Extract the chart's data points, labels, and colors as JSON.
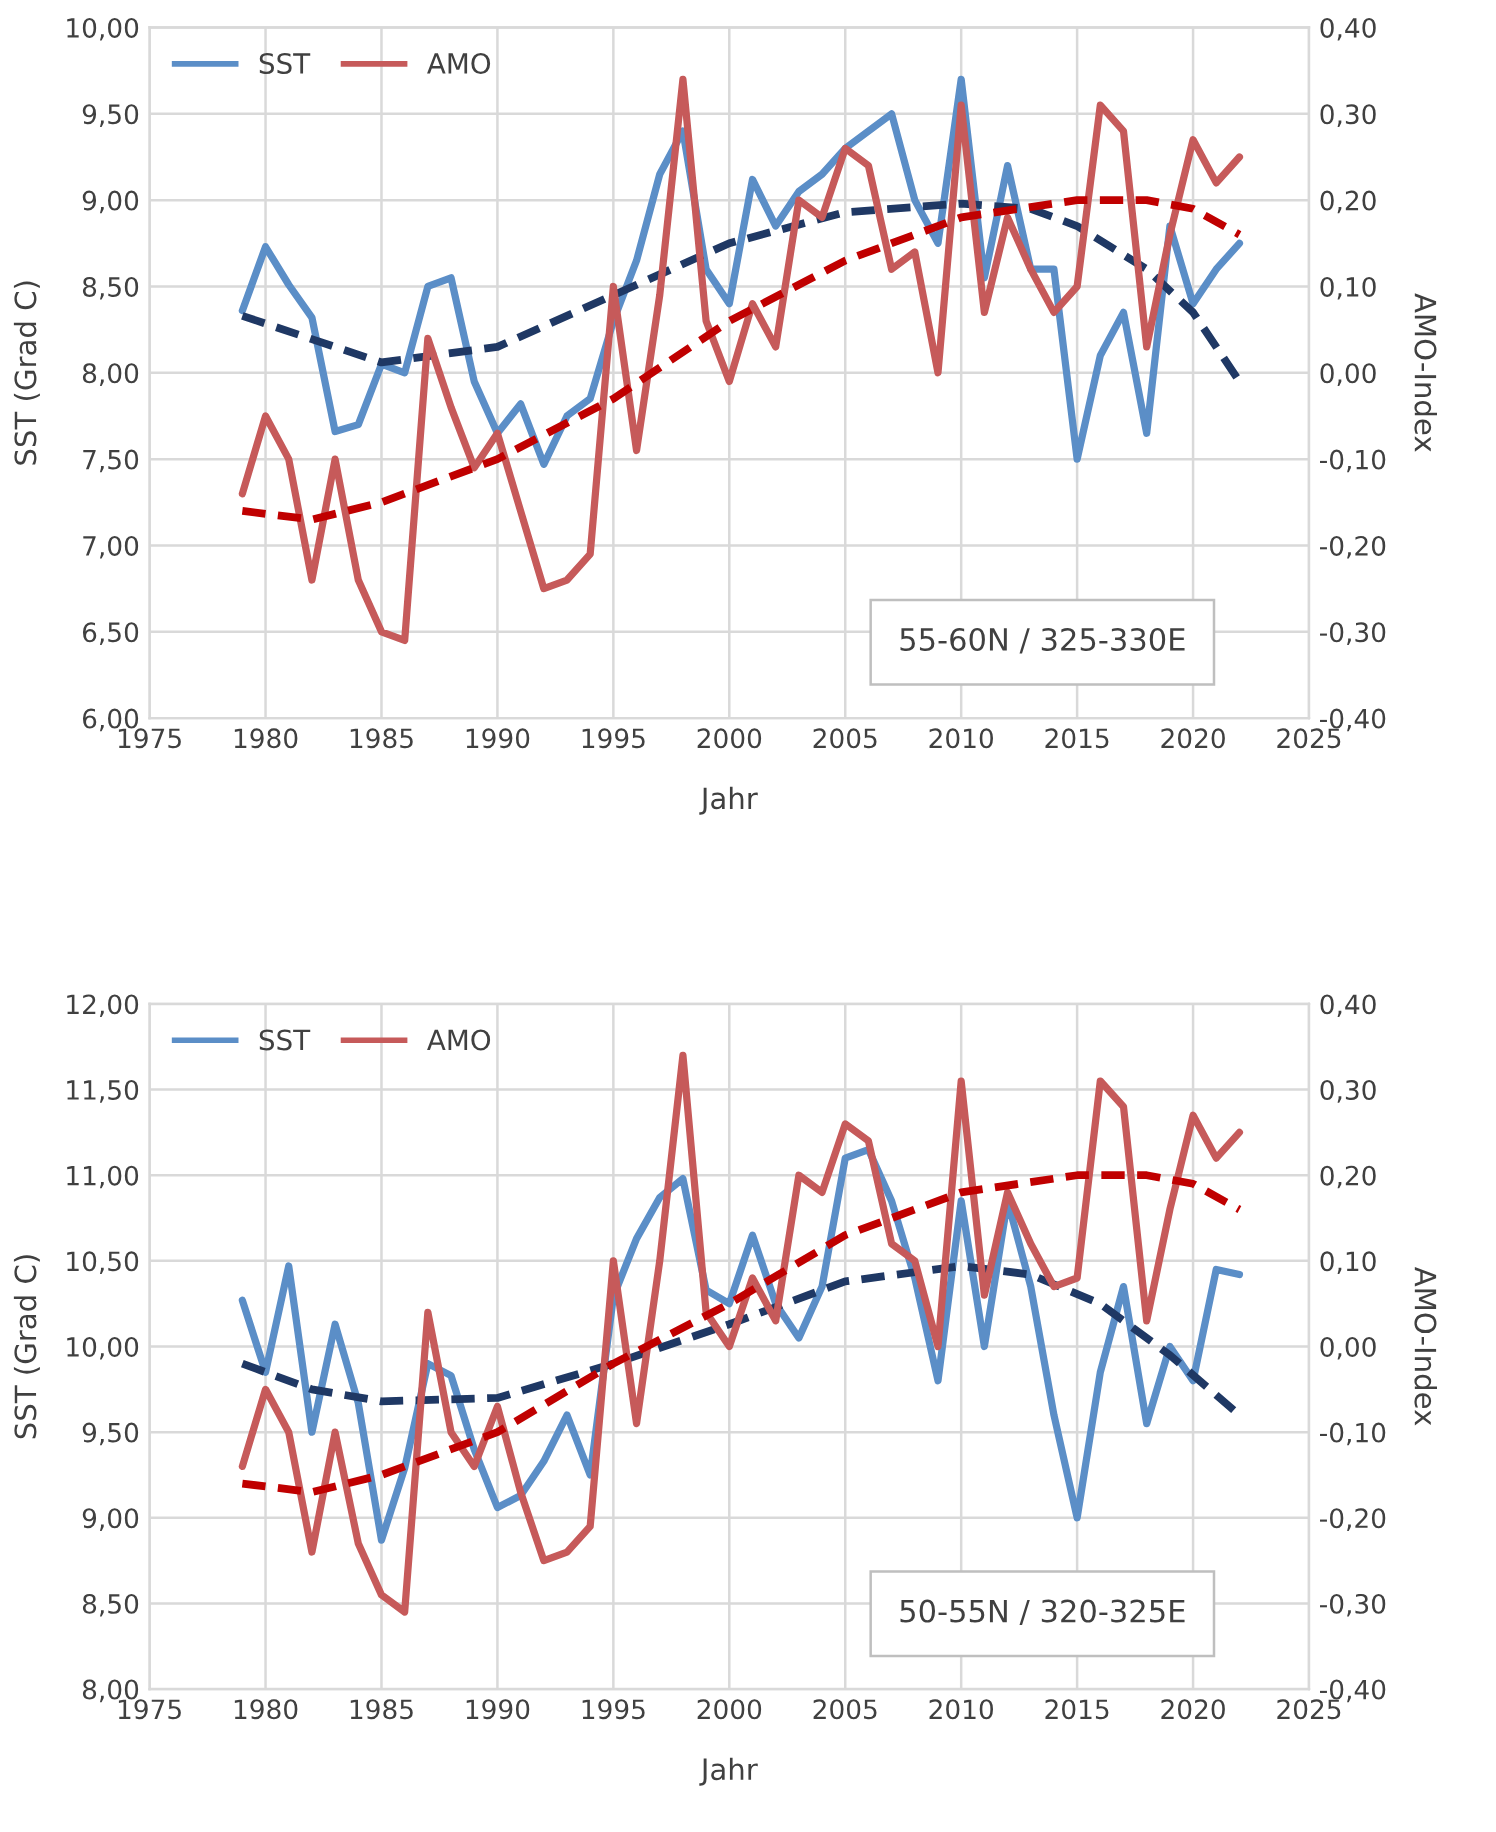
{
  "chart_data": [
    {
      "type": "line",
      "xlabel": "Jahr",
      "ylabel": "SST (Grad C)",
      "y2label": "AMO-Index",
      "annotations": [
        "55-60N / 325-330E"
      ],
      "x": [
        1979,
        1980,
        1981,
        1982,
        1983,
        1984,
        1985,
        1986,
        1987,
        1988,
        1989,
        1990,
        1991,
        1992,
        1993,
        1994,
        1995,
        1996,
        1997,
        1998,
        1999,
        2000,
        2001,
        2002,
        2003,
        2004,
        2005,
        2006,
        2007,
        2008,
        2009,
        2010,
        2011,
        2012,
        2013,
        2014,
        2015,
        2016,
        2017,
        2018,
        2019,
        2020,
        2021,
        2022
      ],
      "series": [
        {
          "name": "SST",
          "color": "#5b8ec7",
          "values": [
            8.36,
            8.73,
            8.51,
            8.32,
            7.66,
            7.7,
            8.05,
            8.0,
            8.5,
            8.55,
            7.95,
            7.65,
            7.82,
            7.47,
            7.75,
            7.85,
            8.3,
            8.65,
            9.15,
            9.4,
            8.6,
            8.4,
            9.12,
            8.85,
            9.05,
            9.15,
            9.3,
            9.4,
            9.5,
            9.0,
            8.75,
            9.7,
            8.55,
            9.2,
            8.6,
            8.6,
            7.5,
            8.1,
            8.35,
            7.65,
            8.85,
            8.4,
            8.6,
            8.75
          ]
        },
        {
          "name": "AMO",
          "color": "#c65a5a",
          "axis": "y2",
          "values": [
            -0.14,
            -0.05,
            -0.1,
            -0.24,
            -0.1,
            -0.24,
            -0.3,
            -0.31,
            0.04,
            -0.04,
            -0.11,
            -0.07,
            -0.16,
            -0.25,
            -0.24,
            -0.21,
            0.1,
            -0.09,
            0.09,
            0.34,
            0.06,
            -0.01,
            0.08,
            0.03,
            0.2,
            0.18,
            0.26,
            0.24,
            0.12,
            0.14,
            0.0,
            0.31,
            0.07,
            0.18,
            0.12,
            0.07,
            0.1,
            0.31,
            0.28,
            0.03,
            0.16,
            0.27,
            0.22,
            0.25
          ]
        },
        {
          "color": "#1f3864",
          "line_style": "dashed",
          "x": [
            1979,
            1985,
            1990,
            1995,
            2000,
            2005,
            2010,
            2013,
            2015,
            2018,
            2020,
            2022
          ],
          "values": [
            8.33,
            8.06,
            8.15,
            8.45,
            8.75,
            8.93,
            8.98,
            8.95,
            8.85,
            8.6,
            8.35,
            7.95
          ]
        },
        {
          "color": "#c00000",
          "line_style": "dashed",
          "axis": "y2",
          "x": [
            1979,
            1982,
            1985,
            1990,
            1995,
            2000,
            2005,
            2010,
            2015,
            2018,
            2020,
            2022
          ],
          "values": [
            -0.16,
            -0.17,
            -0.15,
            -0.1,
            -0.03,
            0.06,
            0.13,
            0.18,
            0.2,
            0.2,
            0.19,
            0.16
          ]
        }
      ],
      "xlim": [
        1975,
        2025
      ],
      "xticks": [
        1975,
        1980,
        1985,
        1990,
        1995,
        2000,
        2005,
        2010,
        2015,
        2020,
        2025
      ],
      "ylim": [
        6,
        10
      ],
      "yticks": [
        {
          "value": 6,
          "label": "6,00"
        },
        {
          "value": 6.5,
          "label": "6,50"
        },
        {
          "value": 7,
          "label": "7,00"
        },
        {
          "value": 7.5,
          "label": "7,50"
        },
        {
          "value": 8,
          "label": "8,00"
        },
        {
          "value": 8.5,
          "label": "8,50"
        },
        {
          "value": 9,
          "label": "9,00"
        },
        {
          "value": 9.5,
          "label": "9,50"
        },
        {
          "value": 10,
          "label": "10,00"
        }
      ],
      "y2lim": [
        -0.4,
        0.4
      ],
      "y2ticks": [
        {
          "value": -0.4,
          "label": "-0,40"
        },
        {
          "value": -0.3,
          "label": "-0,30"
        },
        {
          "value": -0.2,
          "label": "-0,20"
        },
        {
          "value": -0.1,
          "label": "-0,10"
        },
        {
          "value": 0,
          "label": "0,00"
        },
        {
          "value": 0.1,
          "label": "0,10"
        },
        {
          "value": 0.2,
          "label": "0,20"
        },
        {
          "value": 0.3,
          "label": "0,30"
        },
        {
          "value": 0.4,
          "label": "0,40"
        }
      ],
      "grid": true,
      "legend": "top left"
    },
    {
      "type": "line",
      "xlabel": "Jahr",
      "ylabel": "SST (Grad C)",
      "y2label": "AMO-Index",
      "annotations": [
        "50-55N / 320-325E"
      ],
      "x": [
        1979,
        1980,
        1981,
        1982,
        1983,
        1984,
        1985,
        1986,
        1987,
        1988,
        1989,
        1990,
        1991,
        1992,
        1993,
        1994,
        1995,
        1996,
        1997,
        1998,
        1999,
        2000,
        2001,
        2002,
        2003,
        2004,
        2005,
        2006,
        2007,
        2008,
        2009,
        2010,
        2011,
        2012,
        2013,
        2014,
        2015,
        2016,
        2017,
        2018,
        2019,
        2020,
        2021,
        2022
      ],
      "series": [
        {
          "name": "SST",
          "color": "#5b8ec7",
          "values": [
            10.27,
            9.85,
            10.47,
            9.5,
            10.13,
            9.67,
            8.87,
            9.29,
            9.9,
            9.83,
            9.4,
            9.06,
            9.13,
            9.33,
            9.6,
            9.25,
            10.29,
            10.63,
            10.87,
            10.98,
            10.33,
            10.25,
            10.65,
            10.25,
            10.05,
            10.35,
            11.1,
            11.15,
            10.85,
            10.4,
            9.8,
            10.85,
            10.0,
            10.85,
            10.35,
            9.6,
            9.0,
            9.85,
            10.35,
            9.55,
            10.0,
            9.8,
            10.45,
            10.42
          ]
        },
        {
          "name": "AMO",
          "color": "#c65a5a",
          "axis": "y2",
          "values": [
            -0.14,
            -0.05,
            -0.1,
            -0.24,
            -0.1,
            -0.23,
            -0.29,
            -0.31,
            0.04,
            -0.1,
            -0.14,
            -0.07,
            -0.17,
            -0.25,
            -0.24,
            -0.21,
            0.1,
            -0.09,
            0.1,
            0.34,
            0.04,
            0.0,
            0.08,
            0.03,
            0.2,
            0.18,
            0.26,
            0.24,
            0.12,
            0.1,
            0.0,
            0.31,
            0.06,
            0.18,
            0.12,
            0.07,
            0.08,
            0.31,
            0.28,
            0.03,
            0.16,
            0.27,
            0.22,
            0.25
          ]
        },
        {
          "color": "#1f3864",
          "line_style": "dashed",
          "x": [
            1979,
            1982,
            1985,
            1990,
            1995,
            2000,
            2005,
            2010,
            2013,
            2016,
            2019,
            2022
          ],
          "values": [
            9.9,
            9.75,
            9.68,
            9.7,
            9.9,
            10.13,
            10.38,
            10.47,
            10.42,
            10.25,
            9.95,
            9.6
          ]
        },
        {
          "color": "#c00000",
          "line_style": "dashed",
          "axis": "y2",
          "x": [
            1979,
            1982,
            1985,
            1990,
            1995,
            2000,
            2005,
            2010,
            2015,
            2018,
            2020,
            2022
          ],
          "values": [
            -0.16,
            -0.17,
            -0.15,
            -0.1,
            -0.02,
            0.05,
            0.13,
            0.18,
            0.2,
            0.2,
            0.19,
            0.16
          ]
        }
      ],
      "xlim": [
        1975,
        2025
      ],
      "xticks": [
        1975,
        1980,
        1985,
        1990,
        1995,
        2000,
        2005,
        2010,
        2015,
        2020,
        2025
      ],
      "ylim": [
        8,
        12
      ],
      "yticks": [
        {
          "value": 8,
          "label": "8,00"
        },
        {
          "value": 8.5,
          "label": "8,50"
        },
        {
          "value": 9,
          "label": "9,00"
        },
        {
          "value": 9.5,
          "label": "9,50"
        },
        {
          "value": 10,
          "label": "10,00"
        },
        {
          "value": 10.5,
          "label": "10,50"
        },
        {
          "value": 11,
          "label": "11,00"
        },
        {
          "value": 11.5,
          "label": "11,50"
        },
        {
          "value": 12,
          "label": "12,00"
        }
      ],
      "y2lim": [
        -0.4,
        0.4
      ],
      "y2ticks": [
        {
          "value": -0.4,
          "label": "-0,40"
        },
        {
          "value": -0.3,
          "label": "-0,30"
        },
        {
          "value": -0.2,
          "label": "-0,20"
        },
        {
          "value": -0.1,
          "label": "-0,10"
        },
        {
          "value": 0,
          "label": "0,00"
        },
        {
          "value": 0.1,
          "label": "0,10"
        },
        {
          "value": 0.2,
          "label": "0,20"
        },
        {
          "value": 0.3,
          "label": "0,30"
        },
        {
          "value": 0.4,
          "label": "0,40"
        }
      ],
      "grid": true,
      "legend": "top left"
    }
  ]
}
